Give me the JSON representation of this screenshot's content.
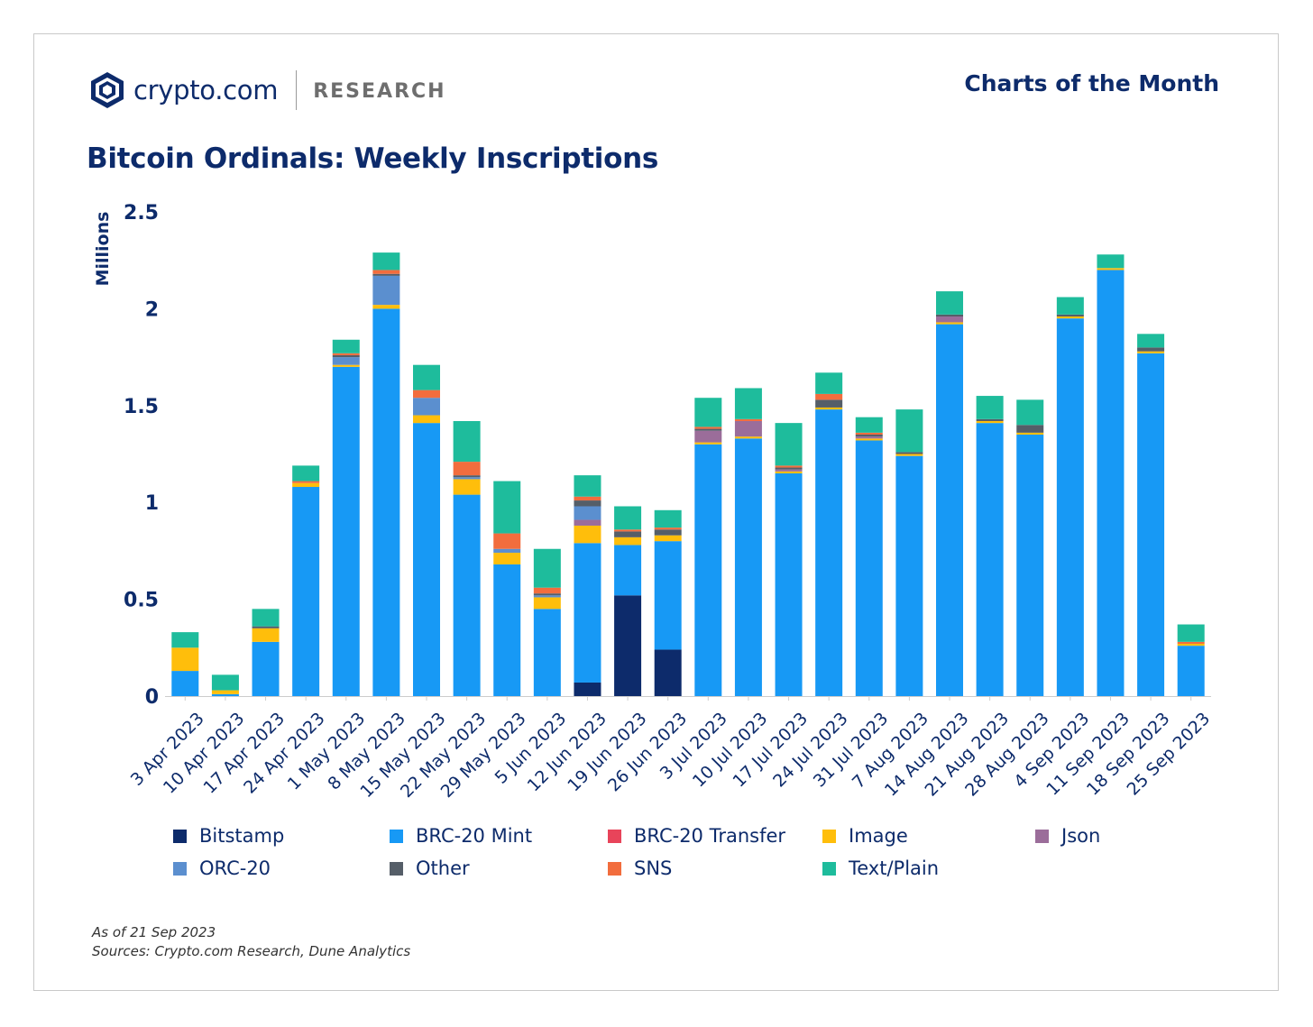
{
  "header": {
    "brand": "crypto.com",
    "research": "RESEARCH",
    "series_label": "Charts of the Month"
  },
  "notes": {
    "as_of": "As of 21 Sep 2023",
    "sources": "Sources: Crypto.com Research, Dune Analytics"
  },
  "colors": {
    "title": "#0d2b6b",
    "axis": "#0d2b6b"
  },
  "chart_data": {
    "type": "bar",
    "stacked": true,
    "title": "Bitcoin Ordinals: Weekly Inscriptions",
    "ylabel": "Millions",
    "xlabel": "",
    "ylim": [
      0,
      2.5
    ],
    "yticks": [
      "0",
      "0.5",
      "1",
      "1.5",
      "2",
      "2.5"
    ],
    "grid": false,
    "legend_position": "bottom",
    "categories": [
      "3 Apr 2023",
      "10 Apr 2023",
      "17 Apr 2023",
      "24 Apr 2023",
      "1 May 2023",
      "8 May 2023",
      "15 May 2023",
      "22 May 2023",
      "29 May 2023",
      "5 Jun 2023",
      "12 Jun 2023",
      "19 Jun 2023",
      "26 Jun 2023",
      "3 Jul 2023",
      "10 Jul 2023",
      "17 Jul 2023",
      "24 Jul 2023",
      "31 Jul 2023",
      "7 Aug 2023",
      "14 Aug 2023",
      "21 Aug 2023",
      "28 Aug 2023",
      "4 Sep 2023",
      "11 Sep 2023",
      "18 Sep 2023",
      "25 Sep 2023"
    ],
    "series": [
      {
        "name": "Bitstamp",
        "color": "#0d2b6b",
        "values": [
          0,
          0,
          0,
          0,
          0,
          0,
          0,
          0,
          0,
          0,
          0.07,
          0.52,
          0.24,
          0,
          0,
          0,
          0,
          0,
          0,
          0,
          0,
          0,
          0,
          0,
          0,
          0
        ]
      },
      {
        "name": "BRC-20 Mint",
        "color": "#1799f5",
        "values": [
          0.13,
          0.01,
          0.28,
          1.08,
          1.7,
          2.0,
          1.41,
          1.04,
          0.68,
          0.45,
          0.72,
          0.26,
          0.56,
          1.3,
          1.33,
          1.15,
          1.48,
          1.32,
          1.24,
          1.92,
          1.41,
          1.35,
          1.95,
          2.2,
          1.77,
          0.26
        ]
      },
      {
        "name": "BRC-20 Transfer",
        "color": "#e8445a",
        "values": [
          0,
          0,
          0,
          0,
          0,
          0,
          0,
          0,
          0,
          0,
          0,
          0,
          0,
          0,
          0,
          0,
          0,
          0,
          0,
          0,
          0,
          0,
          0,
          0,
          0,
          0
        ]
      },
      {
        "name": "Image",
        "color": "#ffbe0b",
        "values": [
          0.12,
          0.02,
          0.07,
          0.02,
          0.01,
          0.02,
          0.04,
          0.08,
          0.06,
          0.06,
          0.09,
          0.04,
          0.03,
          0.01,
          0.01,
          0.01,
          0.01,
          0.01,
          0.01,
          0.01,
          0.01,
          0.01,
          0.01,
          0.01,
          0.01,
          0.01
        ]
      },
      {
        "name": "Json",
        "color": "#9b6d9a",
        "values": [
          0,
          0,
          0,
          0,
          0,
          0,
          0,
          0,
          0,
          0,
          0.03,
          0,
          0,
          0.06,
          0.08,
          0.01,
          0,
          0.01,
          0,
          0.03,
          0,
          0,
          0,
          0,
          0,
          0
        ]
      },
      {
        "name": "ORC-20",
        "color": "#5b8fcf",
        "values": [
          0,
          0,
          0,
          0,
          0.04,
          0.15,
          0.09,
          0.01,
          0.02,
          0.01,
          0.07,
          0,
          0,
          0,
          0,
          0,
          0,
          0,
          0,
          0,
          0,
          0,
          0,
          0,
          0,
          0
        ]
      },
      {
        "name": "Other",
        "color": "#555e68",
        "values": [
          0,
          0,
          0.01,
          0,
          0.01,
          0.01,
          0,
          0.01,
          0,
          0.01,
          0.03,
          0.03,
          0.03,
          0.01,
          0,
          0.01,
          0.04,
          0.01,
          0.01,
          0.01,
          0.01,
          0.04,
          0.01,
          0,
          0.02,
          0
        ]
      },
      {
        "name": "SNS",
        "color": "#f26d3d",
        "values": [
          0,
          0,
          0,
          0.01,
          0.01,
          0.02,
          0.04,
          0.07,
          0.08,
          0.03,
          0.02,
          0.01,
          0.01,
          0.01,
          0.01,
          0.01,
          0.03,
          0.01,
          0,
          0,
          0,
          0,
          0,
          0,
          0,
          0.01
        ]
      },
      {
        "name": "Text/Plain",
        "color": "#1ebc9c",
        "values": [
          0.08,
          0.08,
          0.09,
          0.08,
          0.07,
          0.09,
          0.13,
          0.21,
          0.27,
          0.2,
          0.11,
          0.12,
          0.09,
          0.15,
          0.16,
          0.22,
          0.11,
          0.08,
          0.22,
          0.12,
          0.12,
          0.13,
          0.09,
          0.07,
          0.07,
          0.09
        ]
      }
    ]
  }
}
